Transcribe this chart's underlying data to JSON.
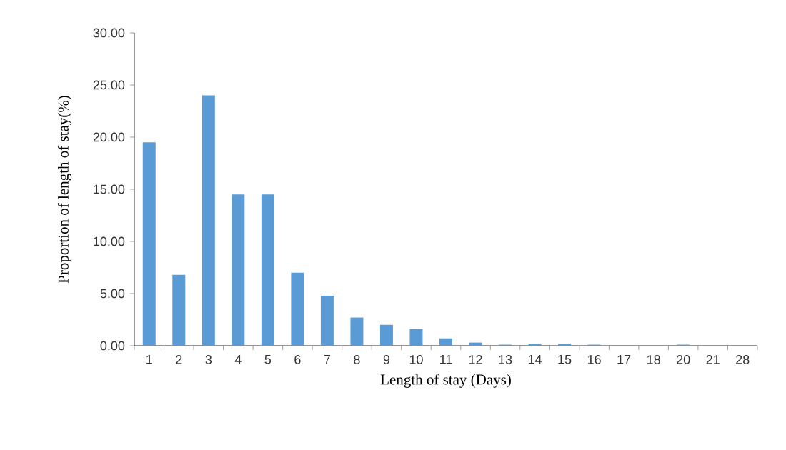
{
  "chart_data": {
    "type": "bar",
    "xlabel": "Length of stay (Days)",
    "ylabel": "Proportion of length of stay(%)",
    "categories": [
      "1",
      "2",
      "3",
      "4",
      "5",
      "6",
      "7",
      "8",
      "9",
      "10",
      "11",
      "12",
      "13",
      "14",
      "15",
      "16",
      "17",
      "18",
      "20",
      "21",
      "28"
    ],
    "values": [
      19.5,
      6.8,
      24.0,
      14.5,
      14.5,
      7.0,
      4.8,
      2.7,
      2.0,
      1.6,
      0.7,
      0.3,
      0.1,
      0.2,
      0.2,
      0.1,
      0,
      0,
      0.1,
      0,
      0
    ],
    "color": "#5b9bd5",
    "ylim": [
      0,
      30
    ],
    "yticks": [
      {
        "value": 0,
        "label": "0.00"
      },
      {
        "value": 5,
        "label": "5.00"
      },
      {
        "value": 10,
        "label": "10.00"
      },
      {
        "value": 15,
        "label": "15.00"
      },
      {
        "value": 20,
        "label": "20.00"
      },
      {
        "value": 25,
        "label": "25.00"
      },
      {
        "value": 30,
        "label": "30.00"
      }
    ],
    "grid": false
  }
}
